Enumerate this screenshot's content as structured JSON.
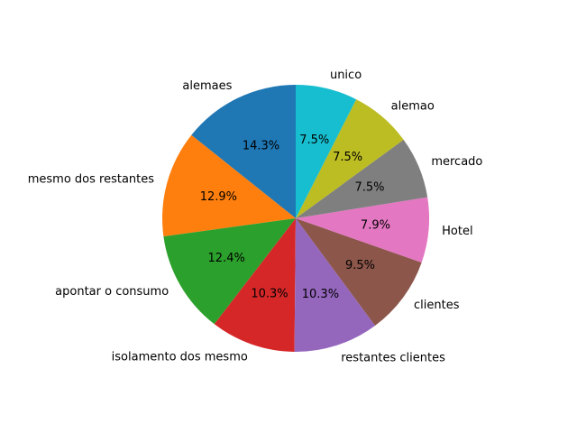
{
  "chart_data": {
    "type": "pie",
    "start_angle_deg": 90,
    "direction": "counterclockwise",
    "categories": [
      "alemaes",
      "mesmo dos restantes",
      "apontar o consumo",
      "isolamento dos mesmo",
      "restantes clientes",
      "clientes",
      "Hotel",
      "mercado",
      "alemao",
      "unico"
    ],
    "values": [
      14.3,
      12.9,
      12.4,
      10.3,
      10.3,
      9.5,
      7.9,
      7.5,
      7.5,
      7.5
    ],
    "percent_labels": [
      "14.3%",
      "12.9%",
      "12.4%",
      "10.3%",
      "10.3%",
      "9.5%",
      "7.9%",
      "7.5%",
      "7.5%",
      "7.5%"
    ],
    "colors": [
      "#1f77b4",
      "#ff7f0e",
      "#2ca02c",
      "#d62728",
      "#9467bd",
      "#8c564b",
      "#e377c2",
      "#7f7f7f",
      "#bcbd22",
      "#17becf"
    ],
    "title": "",
    "legend": false
  }
}
